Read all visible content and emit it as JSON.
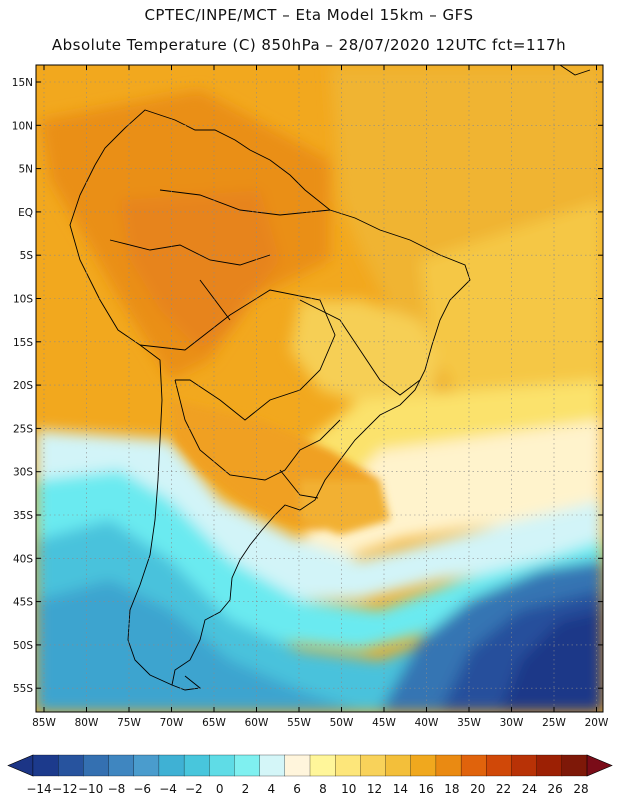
{
  "header": {
    "line1": "CPTEC/INPE/MCT –  Eta Model 15km – GFS",
    "line2": "Absolute Temperature (C) 850hPa – 28/07/2020 12UTC fct=117h"
  },
  "axes": {
    "lat_labels": [
      "15N",
      "10N",
      "5N",
      "EQ",
      "5S",
      "10S",
      "15S",
      "20S",
      "25S",
      "30S",
      "35S",
      "40S",
      "45S",
      "50S",
      "55S"
    ],
    "lon_labels": [
      "85W",
      "80W",
      "75W",
      "70W",
      "65W",
      "60W",
      "55W",
      "50W",
      "45W",
      "40W",
      "35W",
      "30W",
      "25W",
      "20W"
    ]
  },
  "colorbar": {
    "labels": [
      "-14",
      "-12",
      "-10",
      "-8",
      "-6",
      "-4",
      "-2",
      "0",
      "2",
      "4",
      "6",
      "8",
      "10",
      "12",
      "14",
      "16",
      "18",
      "20",
      "22",
      "24",
      "26",
      "28"
    ],
    "colors": [
      "#1c3a8c",
      "#27539e",
      "#3470b1",
      "#3f86c0",
      "#4a9ccd",
      "#3fb1d4",
      "#48c6dc",
      "#5fdce6",
      "#7ff0f0",
      "#d4f6f8",
      "#fff5dc",
      "#fff69a",
      "#fde67a",
      "#f8d25a",
      "#f3bf3a",
      "#f0a81e",
      "#ea8a12",
      "#e0630c",
      "#d04808",
      "#b83206",
      "#9c2004",
      "#7e1808"
    ],
    "under_color": "#1c3586",
    "over_color": "#7a0c18"
  },
  "chart_data": {
    "type": "heatmap",
    "title": "Absolute Temperature (C) 850hPa – 28/07/2020 12UTC fct=117h",
    "subtitle": "CPTEC/INPE/MCT – Eta Model 15km – GFS",
    "variable": "Absolute Temperature (C) 850hPa",
    "units": "C",
    "lon_range": [
      -86,
      -19
    ],
    "lat_range": [
      -58,
      17
    ],
    "color_levels": [
      -14,
      -12,
      -10,
      -8,
      -6,
      -4,
      -2,
      0,
      2,
      4,
      6,
      8,
      10,
      12,
      14,
      16,
      18,
      20,
      22,
      24,
      26,
      28
    ],
    "grid": true
  }
}
